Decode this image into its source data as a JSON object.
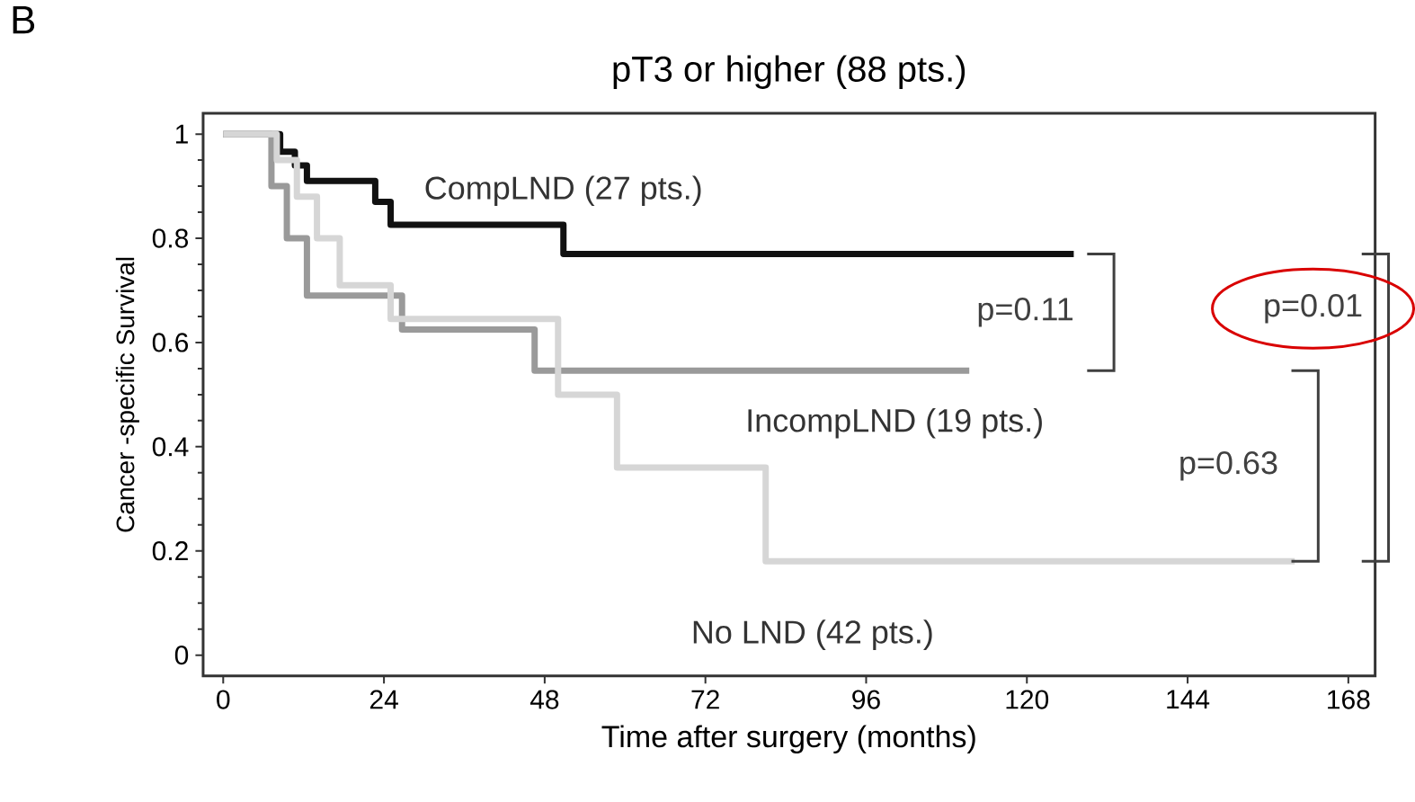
{
  "chart_data": {
    "type": "step",
    "title": "pT3 or higher (88 pts.)",
    "xlabel": "Time after surgery (months)",
    "ylabel": "Cancer -specific Survival",
    "xlim": [
      -3,
      172
    ],
    "ylim": [
      -0.04,
      1.04
    ],
    "xticks": [
      0,
      24,
      48,
      72,
      96,
      120,
      144,
      168
    ],
    "yticks": [
      0,
      0.2,
      0.4,
      0.6,
      0.8,
      1
    ],
    "grid": false,
    "series": [
      {
        "name": "CompLND (27 pts.)",
        "color": "#111111",
        "x": [
          0,
          8.5,
          10.7,
          12.5,
          22.7,
          25,
          50.8,
          127
        ],
        "values": [
          1,
          0.966,
          0.94,
          0.91,
          0.87,
          0.826,
          0.77,
          0.77
        ]
      },
      {
        "name": "IncompLND (19 pts.)",
        "color": "#9a9a9a",
        "x": [
          0,
          7.2,
          9.5,
          12.5,
          26.7,
          46.5,
          111.4
        ],
        "values": [
          1,
          0.9,
          0.8,
          0.69,
          0.625,
          0.546,
          0.546
        ]
      },
      {
        "name": "No LND (42 pts.)",
        "color": "#d6d6d6",
        "x": [
          0,
          8,
          11,
          14,
          17.4,
          25,
          50,
          58.8,
          81,
          160
        ],
        "values": [
          1,
          0.95,
          0.88,
          0.8,
          0.71,
          0.645,
          0.5,
          0.36,
          0.18,
          0.18
        ]
      }
    ],
    "annotations": [
      "B",
      "p=0.11",
      "p=0.63",
      "p=0.01"
    ]
  }
}
